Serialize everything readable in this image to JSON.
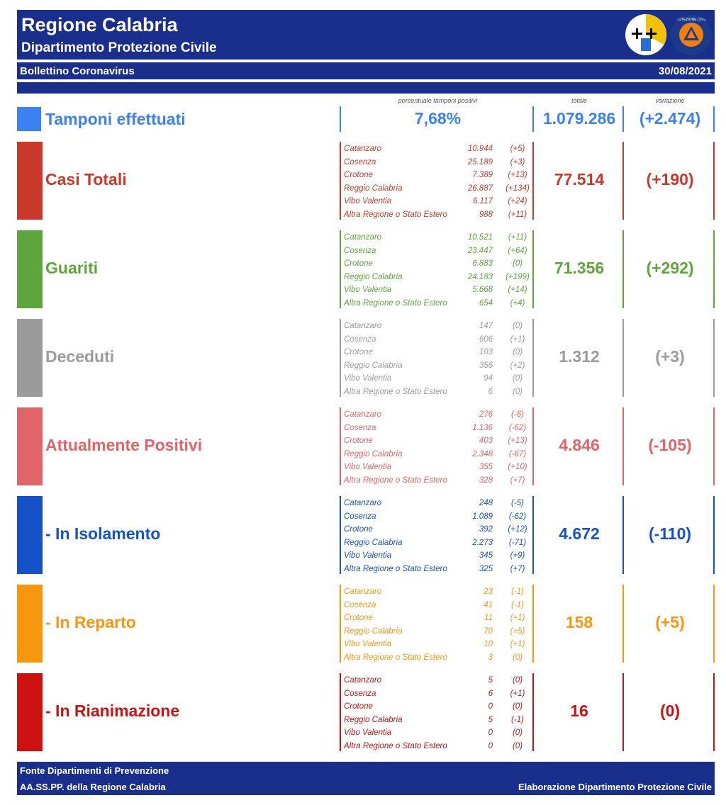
{
  "header": {
    "title": "Regione Calabria",
    "subtitle": "Dipartimento Protezione Civile",
    "logo2_text": "PROTEZIONE CIVILE"
  },
  "bar": {
    "left": "Bollettino Coronavirus",
    "right": "30/08/2021"
  },
  "columns": {
    "percent": "percentuale tamponi positivi",
    "total": "totale",
    "variation": "variazione"
  },
  "tamponi": {
    "label": "Tamponi effettuati",
    "percent": "7,68%",
    "total": "1.079.286",
    "variation": "(+2.474)",
    "color": "#3b82f0"
  },
  "sections": [
    {
      "label": "Casi Totali",
      "color": "#c9392b",
      "total": "77.514",
      "variation": "(+190)",
      "rows": [
        {
          "name": "Catanzaro",
          "value": "10.944",
          "delta": "(+5)"
        },
        {
          "name": "Cosenza",
          "value": "25.189",
          "delta": "(+3)"
        },
        {
          "name": "Crotone",
          "value": "7.389",
          "delta": "(+13)"
        },
        {
          "name": "Reggio Calabria",
          "value": "26.887",
          "delta": "(+134)"
        },
        {
          "name": "Vibo Valentia",
          "value": "6.117",
          "delta": "(+24)"
        },
        {
          "name": "Altra Regione o Stato Estero",
          "value": "988",
          "delta": "(+11)"
        }
      ]
    },
    {
      "label": "Guariti",
      "color": "#5ea53e",
      "total": "71.356",
      "variation": "(+292)",
      "rows": [
        {
          "name": "Catanzaro",
          "value": "10.521",
          "delta": "(+11)"
        },
        {
          "name": "Cosenza",
          "value": "23.447",
          "delta": "(+64)"
        },
        {
          "name": "Crotone",
          "value": "6.883",
          "delta": "(0)"
        },
        {
          "name": "Reggio Calabria",
          "value": "24.183",
          "delta": "(+199)"
        },
        {
          "name": "Vibo Valentia",
          "value": "5.668",
          "delta": "(+14)"
        },
        {
          "name": "Altra Regione o Stato Estero",
          "value": "654",
          "delta": "(+4)"
        }
      ]
    },
    {
      "label": "Deceduti",
      "color": "#9b9b9b",
      "total": "1.312",
      "variation": "(+3)",
      "rows": [
        {
          "name": "Catanzaro",
          "value": "147",
          "delta": "(0)"
        },
        {
          "name": "Cosenza",
          "value": "606",
          "delta": "(+1)"
        },
        {
          "name": "Crotone",
          "value": "103",
          "delta": "(0)"
        },
        {
          "name": "Reggio Calabria",
          "value": "356",
          "delta": "(+2)"
        },
        {
          "name": "Vibo Valentia",
          "value": "94",
          "delta": "(0)"
        },
        {
          "name": "Altra Regione o Stato Estero",
          "value": "6",
          "delta": "(0)"
        }
      ]
    },
    {
      "label": "Attualmente Positivi",
      "color": "#e06468",
      "total": "4.846",
      "variation": "(-105)",
      "rows": [
        {
          "name": "Catanzaro",
          "value": "276",
          "delta": "(-6)"
        },
        {
          "name": "Cosenza",
          "value": "1.136",
          "delta": "(-62)"
        },
        {
          "name": "Crotone",
          "value": "403",
          "delta": "(+13)"
        },
        {
          "name": "Reggio Calabria",
          "value": "2.348",
          "delta": "(-67)"
        },
        {
          "name": "Vibo Valentia",
          "value": "355",
          "delta": "(+10)"
        },
        {
          "name": "Altra Regione o Stato Estero",
          "value": "328",
          "delta": "(+7)"
        }
      ]
    },
    {
      "label": "- In Isolamento",
      "color": "#1552c8",
      "total": "4.672",
      "variation": "(-110)",
      "rows": [
        {
          "name": "Catanzaro",
          "value": "248",
          "delta": "(-5)"
        },
        {
          "name": "Cosenza",
          "value": "1.089",
          "delta": "(-62)"
        },
        {
          "name": "Crotone",
          "value": "392",
          "delta": "(+12)"
        },
        {
          "name": "Reggio Calabria",
          "value": "2.273",
          "delta": "(-71)"
        },
        {
          "name": "Vibo Valentia",
          "value": "345",
          "delta": "(+9)"
        },
        {
          "name": "Altra Regione o Stato Estero",
          "value": "325",
          "delta": "(+7)"
        }
      ]
    },
    {
      "label": "- In Reparto",
      "color": "#f7960f",
      "total": "158",
      "variation": "(+5)",
      "rows": [
        {
          "name": "Catanzaro",
          "value": "23",
          "delta": "(-1)"
        },
        {
          "name": "Cosenza",
          "value": "41",
          "delta": "(-1)"
        },
        {
          "name": "Crotone",
          "value": "11",
          "delta": "(+1)"
        },
        {
          "name": "Reggio Calabria",
          "value": "70",
          "delta": "(+5)"
        },
        {
          "name": "Vibo Valentia",
          "value": "10",
          "delta": "(+1)"
        },
        {
          "name": "Altra Regione o Stato Estero",
          "value": "3",
          "delta": "(0)"
        }
      ]
    },
    {
      "label": "- In Rianimazione",
      "color": "#cc1111",
      "total": "16",
      "variation": "(0)",
      "rows": [
        {
          "name": "Catanzaro",
          "value": "5",
          "delta": "(0)"
        },
        {
          "name": "Cosenza",
          "value": "6",
          "delta": "(+1)"
        },
        {
          "name": "Crotone",
          "value": "0",
          "delta": "(0)"
        },
        {
          "name": "Reggio Calabria",
          "value": "5",
          "delta": "(-1)"
        },
        {
          "name": "Vibo Valentia",
          "value": "0",
          "delta": "(0)"
        },
        {
          "name": "Altra Regione o Stato Estero",
          "value": "0",
          "delta": "(0)"
        }
      ]
    }
  ],
  "footer": {
    "line1": "Fonte Dipartimenti di Prevenzione",
    "line2": "AA.SS.PP.  della Regione Calabria",
    "right": "Elaborazione Dipartimento Protezione Civile"
  }
}
